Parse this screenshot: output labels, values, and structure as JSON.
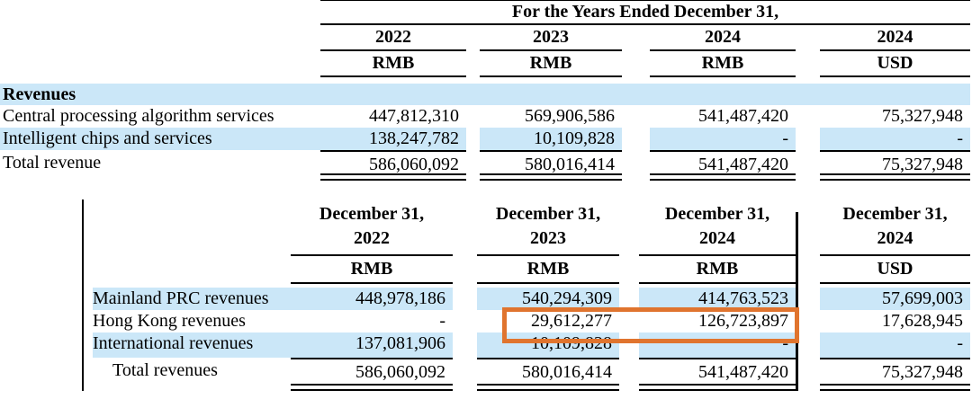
{
  "colors": {
    "stripe_blue": "#CBE7F8",
    "highlight_orange": "#E0742E",
    "rule_black": "#000000"
  },
  "table1": {
    "title": "For the Years Ended December 31,",
    "columns": [
      {
        "year": "2022",
        "currency": "RMB"
      },
      {
        "year": "2023",
        "currency": "RMB"
      },
      {
        "year": "2024",
        "currency": "RMB"
      },
      {
        "year": "2024",
        "currency": "USD"
      }
    ],
    "section_header": "Revenues",
    "rows": [
      {
        "label": "Central processing algorithm services",
        "values": [
          "447,812,310",
          "569,906,586",
          "541,487,420",
          "75,327,948"
        ]
      },
      {
        "label": "Intelligent chips and services",
        "values": [
          "138,247,782",
          "10,109,828",
          "-",
          "-"
        ]
      }
    ],
    "total": {
      "label": "Total revenue",
      "values": [
        "586,060,092",
        "580,016,414",
        "541,487,420",
        "75,327,948"
      ]
    }
  },
  "table2": {
    "columns": [
      {
        "date": "December 31,",
        "year": "2022",
        "currency": "RMB"
      },
      {
        "date": "December 31,",
        "year": "2023",
        "currency": "RMB"
      },
      {
        "date": "December 31,",
        "year": "2024",
        "currency": "RMB"
      },
      {
        "date": "December 31,",
        "year": "2024",
        "currency": "USD"
      }
    ],
    "rows": [
      {
        "label": "Mainland PRC revenues",
        "values": [
          "448,978,186",
          "540,294,309",
          "414,763,523",
          "57,699,003"
        ]
      },
      {
        "label": "Hong Kong revenues",
        "values": [
          "-",
          "29,612,277",
          "126,723,897",
          "17,628,945"
        ]
      },
      {
        "label": "International revenues",
        "values": [
          "137,081,906",
          "10,109,828",
          "-",
          "-"
        ]
      }
    ],
    "total": {
      "label": "Total revenues",
      "values": [
        "586,060,092",
        "580,016,414",
        "541,487,420",
        "75,327,948"
      ]
    },
    "highlight": {
      "row": "Hong Kong revenues",
      "values": [
        "29,612,277",
        "126,723,897"
      ]
    }
  }
}
